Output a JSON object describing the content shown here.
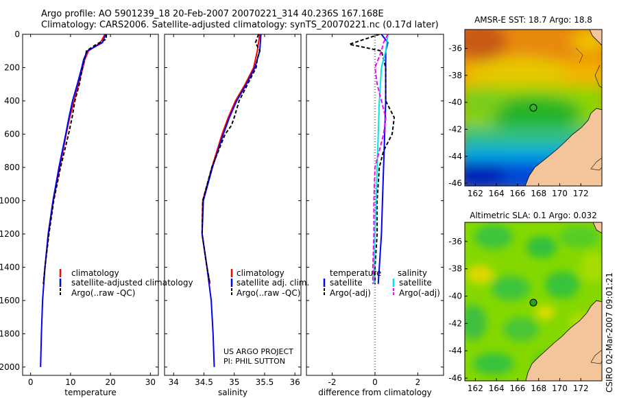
{
  "title": {
    "line1": "Argo profile: AO 5901239_18 20-Feb-2007 20070221_314 40.236S 167.168E",
    "line2": "Climatology: CARS2006. Satellite-adjusted climatology: synTS_20070221.nc (0.17d later)"
  },
  "credit": "CSIRO 02-Mar-2007 09:01:21",
  "colors": {
    "climatology": "#ff0000",
    "satellite": "#0000ff",
    "argo": "#000000",
    "sal_satellite": "#00e5e5",
    "sal_argo": "#ff00ff",
    "land": "#f4c49a"
  },
  "chart_data": [
    {
      "type": "line",
      "name": "temperature-profile",
      "xlabel": "temperature",
      "ylabel": "",
      "xlim": [
        -2,
        32
      ],
      "ylim": [
        2050,
        0
      ],
      "xticks": [
        "0",
        "10",
        "20",
        "30"
      ],
      "xtick_values": [
        0,
        10,
        20,
        30
      ],
      "yticks": [
        "0",
        "200",
        "400",
        "600",
        "800",
        "1000",
        "1200",
        "1400",
        "1600",
        "1800",
        "2000"
      ],
      "ytick_values": [
        0,
        200,
        400,
        600,
        800,
        1000,
        1200,
        1400,
        1600,
        1800,
        2000
      ],
      "series": [
        {
          "name": "climatology",
          "color": "#ff0000",
          "dash": "",
          "depth": [
            0,
            50,
            100,
            150,
            200,
            300,
            400,
            500,
            600,
            800,
            1000,
            1200,
            1400,
            1500
          ],
          "values": [
            18.6,
            17.5,
            14.5,
            13.6,
            13.1,
            12.0,
            10.9,
            9.8,
            8.9,
            7.3,
            5.7,
            4.5,
            3.6,
            3.2
          ]
        },
        {
          "name": "satellite-adjusted climatology",
          "color": "#0000ff",
          "dash": "",
          "depth": [
            0,
            50,
            100,
            150,
            200,
            300,
            400,
            500,
            600,
            800,
            1000,
            1200,
            1400,
            1600,
            1800,
            2000
          ],
          "values": [
            18.8,
            18.0,
            14.2,
            13.3,
            12.8,
            11.7,
            10.5,
            9.6,
            8.8,
            7.1,
            5.6,
            4.4,
            3.6,
            3.0,
            2.7,
            2.5
          ]
        },
        {
          "name": "Argo(..raw -QC)",
          "color": "#000000",
          "dash": "5,3",
          "depth": [
            0,
            30,
            60,
            100,
            150,
            200,
            300,
            400,
            500,
            600,
            800,
            1000,
            1200,
            1400,
            1500
          ],
          "values": [
            19.0,
            18.9,
            16.5,
            14.0,
            13.5,
            13.0,
            12.2,
            11.1,
            10.4,
            9.5,
            7.5,
            5.8,
            4.6,
            3.6,
            3.2
          ]
        }
      ],
      "legend": [
        "climatology",
        "satellite-adjusted climatology",
        "Argo(..raw -QC)"
      ]
    },
    {
      "type": "line",
      "name": "salinity-profile",
      "xlabel": "salinity",
      "xlim": [
        33.85,
        36.1
      ],
      "ylim": [
        2050,
        0
      ],
      "xticks": [
        "34",
        "34.5",
        "35",
        "35.5",
        "36"
      ],
      "xtick_values": [
        34,
        34.5,
        35,
        35.5,
        36
      ],
      "series": [
        {
          "name": "climatology",
          "color": "#ff0000",
          "dash": "",
          "depth": [
            0,
            100,
            200,
            300,
            400,
            500,
            600,
            800,
            1000,
            1200,
            1400,
            1500
          ],
          "values": [
            35.42,
            35.38,
            35.32,
            35.18,
            35.02,
            34.9,
            34.8,
            34.63,
            34.48,
            34.47,
            34.55,
            34.6
          ]
        },
        {
          "name": "satellite adj. clim.",
          "color": "#0000ff",
          "dash": "",
          "depth": [
            0,
            100,
            200,
            300,
            400,
            500,
            600,
            800,
            1000,
            1200,
            1400,
            1600,
            1800,
            2000
          ],
          "values": [
            35.44,
            35.42,
            35.34,
            35.2,
            35.04,
            34.92,
            34.82,
            34.64,
            34.49,
            34.47,
            34.55,
            34.62,
            34.65,
            34.67
          ]
        },
        {
          "name": "Argo(..raw -QC)",
          "color": "#000000",
          "dash": "5,3",
          "depth": [
            0,
            50,
            100,
            150,
            200,
            300,
            400,
            500,
            550,
            600,
            700,
            800,
            1000,
            1200,
            1400,
            1500
          ],
          "values": [
            35.4,
            35.35,
            35.42,
            35.38,
            35.36,
            35.22,
            35.08,
            35.0,
            34.95,
            34.85,
            34.74,
            34.63,
            34.48,
            34.47,
            34.55,
            34.6
          ]
        }
      ],
      "legend": [
        "climatology",
        "satellite adj. clim.",
        "Argo(..raw -QC)"
      ],
      "annotation": [
        "US ARGO PROJECT",
        "PI: PHIL SUTTON"
      ]
    },
    {
      "type": "line",
      "name": "difference-profile",
      "xlabel": "difference from climatology",
      "xlim": [
        -3.2,
        3.2
      ],
      "ylim": [
        2050,
        0
      ],
      "xticks": [
        "-2",
        "0",
        "2"
      ],
      "xtick_values": [
        -2,
        0,
        2
      ],
      "series": [
        {
          "name": "temperature satellite",
          "color": "#0000ff",
          "dash": "",
          "depth": [
            0,
            50,
            100,
            200,
            400,
            600,
            800,
            1000,
            1200,
            1400,
            1500
          ],
          "values": [
            0.3,
            0.6,
            0.5,
            0.5,
            0.5,
            0.45,
            0.4,
            0.35,
            0.3,
            0.2,
            0.15
          ]
        },
        {
          "name": "temperature Argo(-adj)",
          "color": "#000000",
          "dash": "5,3",
          "depth": [
            0,
            30,
            60,
            100,
            200,
            400,
            500,
            600,
            700,
            800,
            1000,
            1200,
            1400,
            1500
          ],
          "values": [
            0.2,
            -0.5,
            -1.2,
            0.3,
            0.5,
            0.5,
            0.9,
            0.8,
            0.4,
            0.2,
            0.1,
            0.1,
            0.0,
            0.0
          ]
        },
        {
          "name": "salinity satellite",
          "color": "#00e5e5",
          "dash": "",
          "depth": [
            0,
            100,
            200,
            400,
            600,
            800,
            1000,
            1200,
            1400,
            1500
          ],
          "values": [
            0.6,
            0.5,
            0.3,
            0.2,
            0.15,
            0.1,
            0.05,
            0.0,
            -0.05,
            -0.05
          ]
        },
        {
          "name": "salinity Argo(-adj)",
          "color": "#ff00ff",
          "dash": "6,3",
          "depth": [
            0,
            50,
            100,
            200,
            300,
            400,
            500,
            600,
            700,
            800,
            1000,
            1200,
            1400,
            1500
          ],
          "values": [
            0.6,
            0.4,
            0.3,
            0.0,
            0.1,
            0.3,
            0.5,
            0.4,
            0.2,
            0.0,
            -0.05,
            -0.05,
            -0.1,
            -0.1
          ]
        }
      ],
      "legend": {
        "temperature_heading": "temperature",
        "salinity_heading": "salinity",
        "temperature": [
          "satellite",
          "Argo(-adj)"
        ],
        "salinity": [
          "satellite",
          "Argo(-adj)"
        ]
      }
    },
    {
      "type": "heatmap",
      "name": "sst-map",
      "title": "AMSR-E SST: 18.7  Argo: 18.8",
      "xlim": [
        161,
        174
      ],
      "ylim": [
        -46.2,
        -34.6
      ],
      "xticks": [
        "162",
        "164",
        "166",
        "168",
        "170",
        "172"
      ],
      "xtick_values": [
        162,
        164,
        166,
        168,
        170,
        172
      ],
      "yticks": [
        "-36",
        "-38",
        "-40",
        "-42",
        "-44",
        "-46"
      ],
      "ytick_values": [
        -36,
        -38,
        -40,
        -42,
        -44,
        -46
      ],
      "float_position": {
        "lon": 167.17,
        "lat": -40.24
      }
    },
    {
      "type": "heatmap",
      "name": "sla-map",
      "title": "Altimetric SLA: 0.1  Argo: 0.032",
      "xlim": [
        161,
        174
      ],
      "ylim": [
        -46.2,
        -34.6
      ],
      "xticks": [
        "162",
        "164",
        "166",
        "168",
        "170",
        "172"
      ],
      "xtick_values": [
        162,
        164,
        166,
        168,
        170,
        172
      ],
      "yticks": [
        "-36",
        "-38",
        "-40",
        "-42",
        "-44",
        "-46"
      ],
      "ytick_values": [
        -36,
        -38,
        -40,
        -42,
        -44,
        -46
      ],
      "float_position": {
        "lon": 167.17,
        "lat": -40.24
      }
    }
  ]
}
